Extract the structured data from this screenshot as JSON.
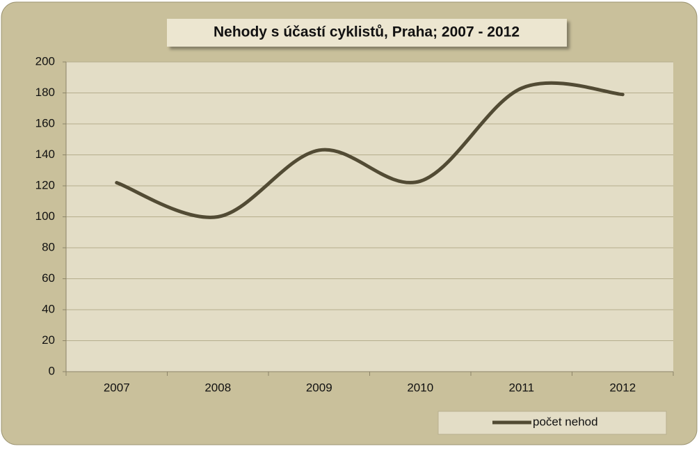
{
  "chart_data": {
    "type": "line",
    "title": "Nehody s účastí cyklistů, Praha; 2007 - 2012",
    "categories": [
      "2007",
      "2008",
      "2009",
      "2010",
      "2011",
      "2012"
    ],
    "series": [
      {
        "name": "počet nehod",
        "color": "#524b34",
        "values": [
          122,
          100,
          143,
          123,
          183,
          179
        ]
      }
    ],
    "ylim": [
      0,
      200
    ],
    "yticks": [
      0,
      20,
      40,
      60,
      80,
      100,
      120,
      140,
      160,
      180,
      200
    ],
    "grid": true,
    "smooth": true,
    "legend": "bottom-right"
  }
}
